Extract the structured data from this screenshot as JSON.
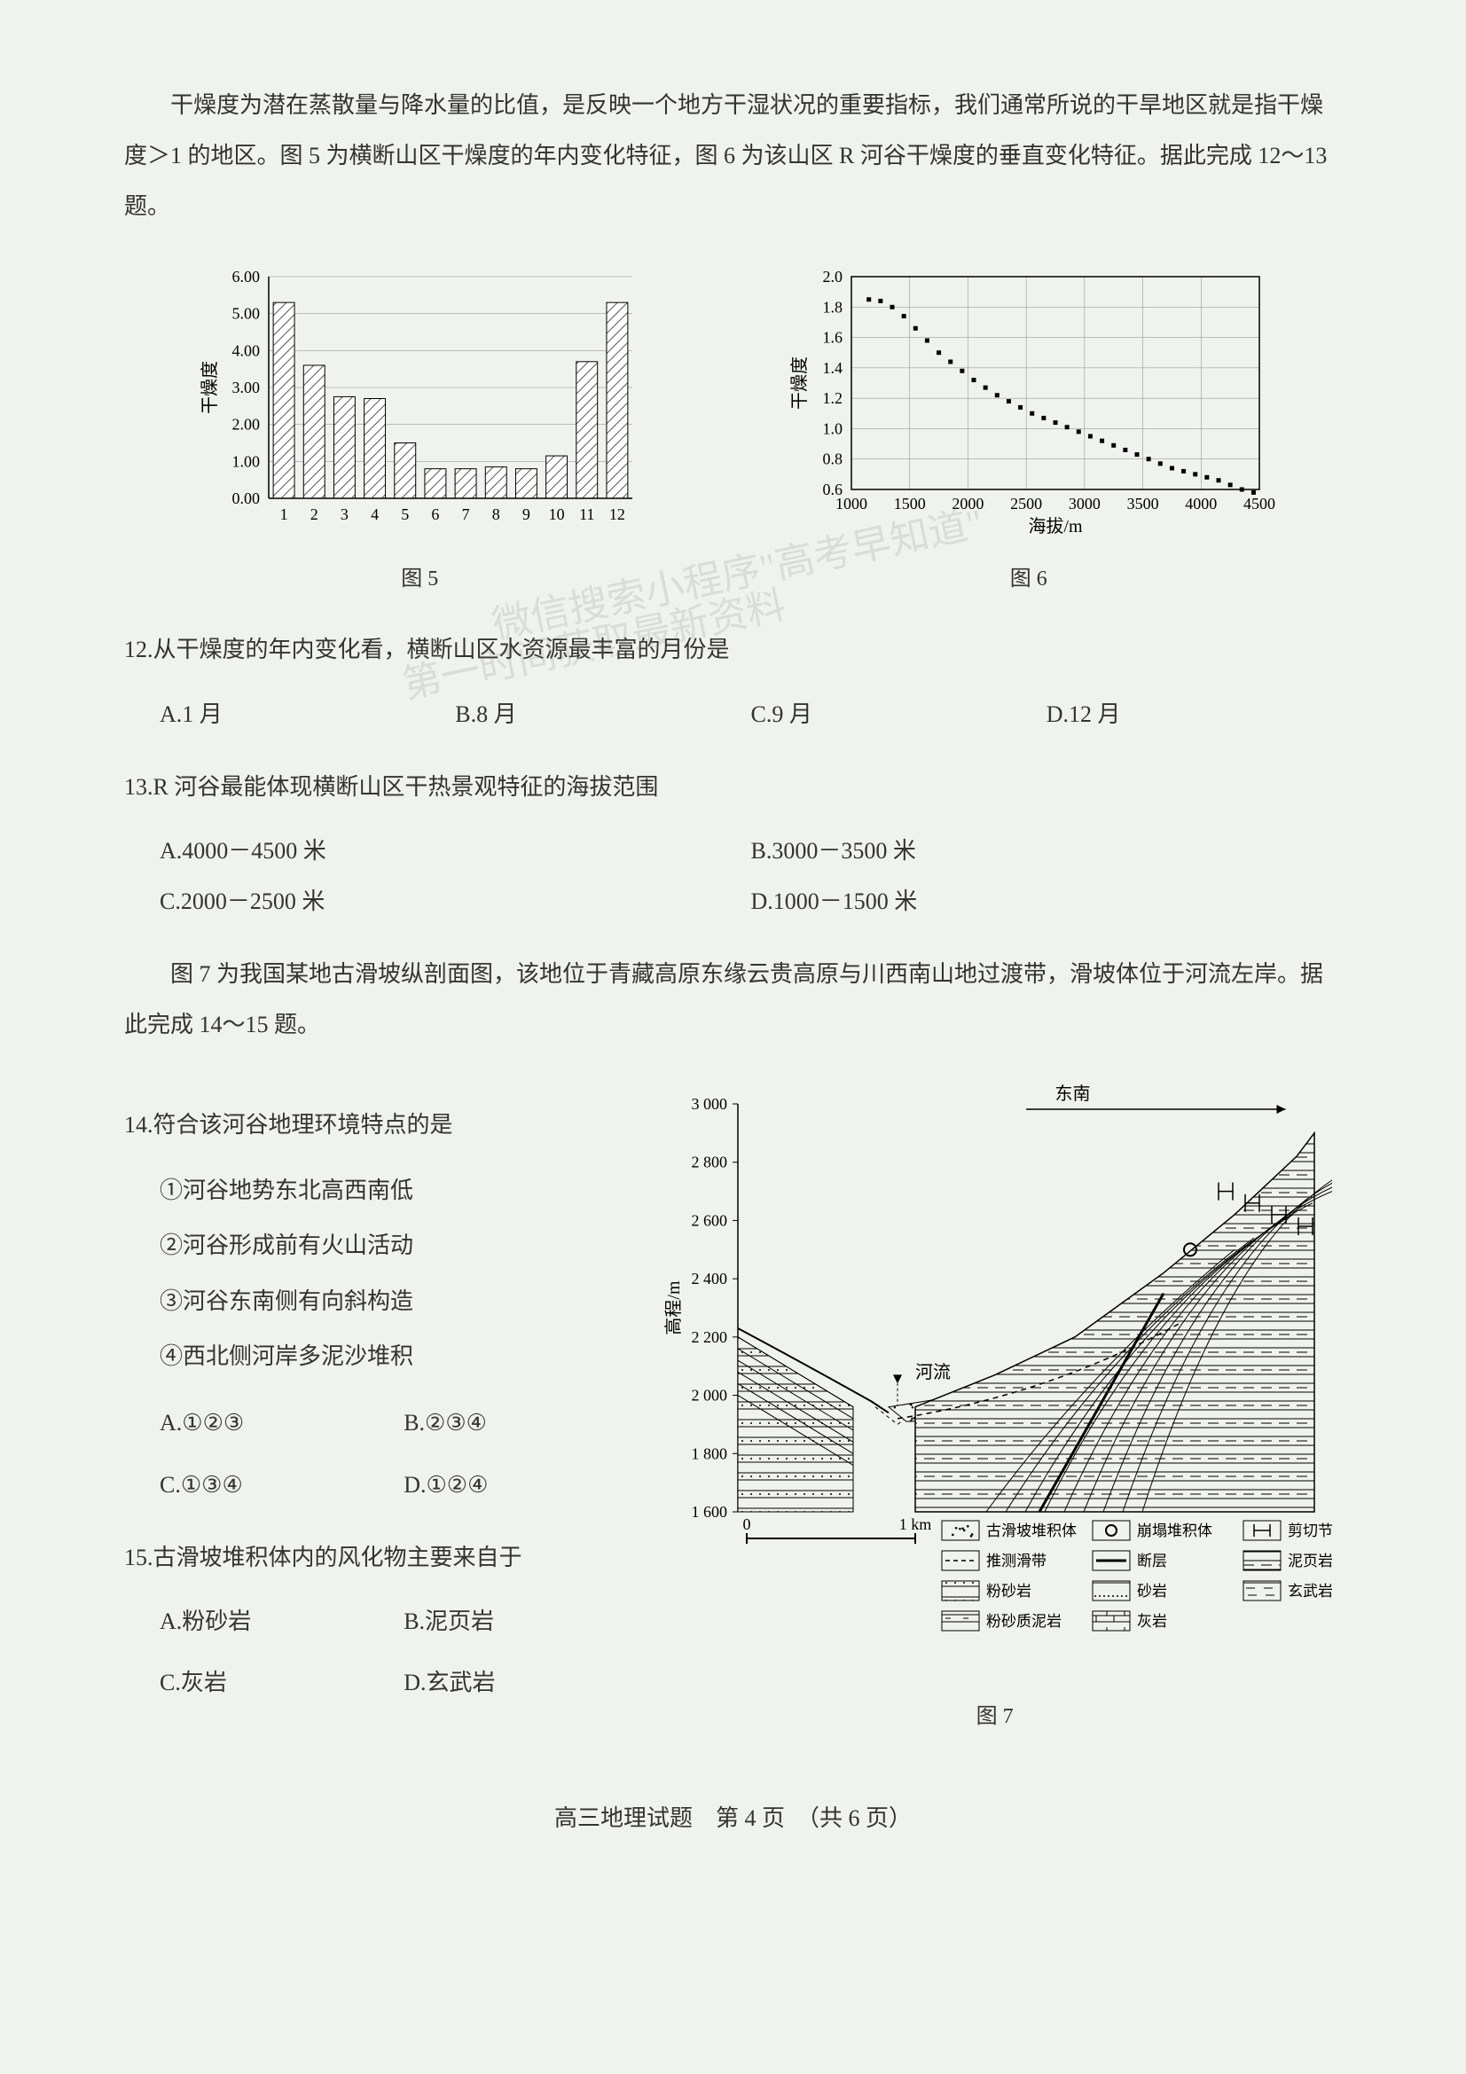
{
  "intro": "干燥度为潜在蒸散量与降水量的比值，是反映一个地方干湿状况的重要指标，我们通常所说的干旱地区就是指干燥度＞1 的地区。图 5 为横断山区干燥度的年内变化特征，图 6 为该山区 R 河谷干燥度的垂直变化特征。据此完成 12～13 题。",
  "chart5": {
    "type": "bar",
    "caption": "图 5",
    "ylabel": "干燥度",
    "categories": [
      "1",
      "2",
      "3",
      "4",
      "5",
      "6",
      "7",
      "8",
      "9",
      "10",
      "11",
      "12"
    ],
    "values": [
      5.3,
      3.6,
      2.75,
      2.7,
      1.5,
      0.8,
      0.8,
      0.85,
      0.8,
      1.15,
      3.7,
      5.3
    ],
    "ylim": [
      0,
      6
    ],
    "ytick_step": 1.0,
    "ytick_labels": [
      "0.00",
      "1.00",
      "2.00",
      "3.00",
      "4.00",
      "5.00",
      "6.00"
    ],
    "bar_color": "#ffffff",
    "bar_hatch_color": "#555555",
    "axis_color": "#000000",
    "grid_color": "#888888",
    "background_color": "#f0f2ed",
    "bar_width": 0.7,
    "label_fontsize": 18
  },
  "chart6": {
    "type": "scatter-line",
    "caption": "图 6",
    "ylabel": "干燥度",
    "xlabel": "海拔/m",
    "xlim": [
      1000,
      4500
    ],
    "xtick_step": 500,
    "xtick_labels": [
      "1000",
      "1500",
      "2000",
      "2500",
      "3000",
      "3500",
      "4000",
      "4500"
    ],
    "ylim": [
      0.6,
      2.0
    ],
    "ytick_step": 0.2,
    "ytick_labels": [
      "0.6",
      "0.8",
      "1.0",
      "1.2",
      "1.4",
      "1.6",
      "1.8",
      "2.0"
    ],
    "points": [
      [
        1150,
        1.85
      ],
      [
        1250,
        1.84
      ],
      [
        1350,
        1.8
      ],
      [
        1450,
        1.74
      ],
      [
        1550,
        1.66
      ],
      [
        1650,
        1.58
      ],
      [
        1750,
        1.5
      ],
      [
        1850,
        1.44
      ],
      [
        1950,
        1.38
      ],
      [
        2050,
        1.32
      ],
      [
        2150,
        1.27
      ],
      [
        2250,
        1.22
      ],
      [
        2350,
        1.18
      ],
      [
        2450,
        1.14
      ],
      [
        2550,
        1.1
      ],
      [
        2650,
        1.07
      ],
      [
        2750,
        1.04
      ],
      [
        2850,
        1.01
      ],
      [
        2950,
        0.98
      ],
      [
        3050,
        0.95
      ],
      [
        3150,
        0.92
      ],
      [
        3250,
        0.89
      ],
      [
        3350,
        0.86
      ],
      [
        3450,
        0.83
      ],
      [
        3550,
        0.8
      ],
      [
        3650,
        0.77
      ],
      [
        3750,
        0.74
      ],
      [
        3850,
        0.72
      ],
      [
        3950,
        0.7
      ],
      [
        4050,
        0.68
      ],
      [
        4150,
        0.66
      ],
      [
        4250,
        0.63
      ],
      [
        4350,
        0.6
      ],
      [
        4450,
        0.58
      ]
    ],
    "marker_color": "#000000",
    "marker_size": 5,
    "axis_color": "#000000",
    "grid_color": "#888888",
    "background_color": "#f0f2ed",
    "label_fontsize": 18
  },
  "q12": {
    "stem": "12.从干燥度的年内变化看，横断山区水资源最丰富的月份是",
    "A": "A.1 月",
    "B": "B.8 月",
    "C": "C.9 月",
    "D": "D.12 月"
  },
  "q13": {
    "stem": "13.R 河谷最能体现横断山区干热景观特征的海拔范围",
    "A": "A.4000－4500 米",
    "B": "B.3000－3500 米",
    "C": "C.2000－2500 米",
    "D": "D.1000－1500 米"
  },
  "intro2": "图 7 为我国某地古滑坡纵剖面图，该地位于青藏高原东缘云贵高原与川西南山地过渡带，滑坡体位于河流左岸。据此完成 14～15 题。",
  "q14": {
    "stem": "14.符合该河谷地理环境特点的是",
    "i1": "①河谷地势东北高西南低",
    "i2": "②河谷形成前有火山活动",
    "i3": "③河谷东南侧有向斜构造",
    "i4": "④西北侧河岸多泥沙堆积",
    "A": "A.①②③",
    "B": "B.②③④",
    "C": "C.①③④",
    "D": "D.①②④"
  },
  "q15": {
    "stem": "15.古滑坡堆积体内的风化物主要来自于",
    "A": "A.粉砂岩",
    "B": "B.泥页岩",
    "C": "C.灰岩",
    "D": "D.玄武岩"
  },
  "fig7": {
    "caption": "图 7",
    "ylabel": "高程/m",
    "direction_label": "东南",
    "river_label": "河流",
    "scale_labels": [
      "0",
      "1 km"
    ],
    "yticks": [
      "1 600",
      "1 800",
      "2 000",
      "2 200",
      "2 400",
      "2 600",
      "2 800",
      "3 000"
    ],
    "legend": [
      {
        "label": "古滑坡堆积体",
        "swatch": "dotted-fill"
      },
      {
        "label": "崩塌堆积体",
        "swatch": "donut"
      },
      {
        "label": "剪切节理",
        "swatch": "shear"
      },
      {
        "label": "推测滑带",
        "swatch": "dashed-line"
      },
      {
        "label": "断层",
        "swatch": "solid-line"
      },
      {
        "label": "泥页岩",
        "swatch": "mud-lines"
      },
      {
        "label": "粉砂岩",
        "swatch": "silt-lines"
      },
      {
        "label": "砂岩",
        "swatch": "sand-dots"
      },
      {
        "label": "玄武岩",
        "swatch": "basalt"
      },
      {
        "label": "粉砂质泥岩",
        "swatch": "silt-mud"
      },
      {
        "label": "灰岩",
        "swatch": "limestone"
      }
    ],
    "axis_color": "#000000",
    "line_color": "#000000",
    "background_color": "#f0f2ed",
    "label_fontsize": 18
  },
  "footer": "高三地理试题　第 4 页　（共 6 页）",
  "watermark1": "微信搜索小程序\"高考早知道\"",
  "watermark2": "第一时间获取最新资料"
}
